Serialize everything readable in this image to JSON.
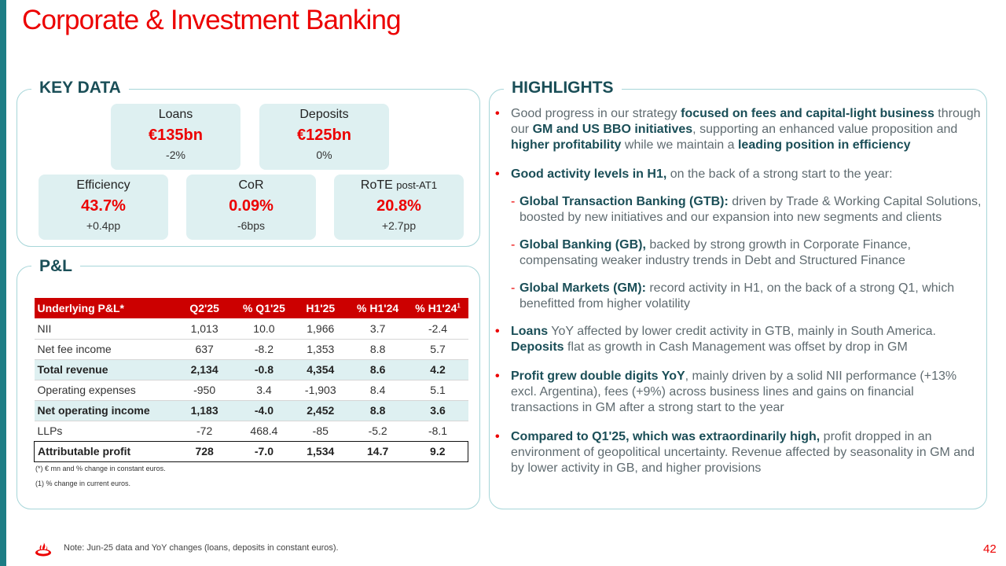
{
  "title": "Corporate & Investment Banking",
  "key_data": {
    "label": "KEY DATA",
    "loans": {
      "name": "Loans",
      "value": "€135bn",
      "change": "-2%"
    },
    "deposits": {
      "name": "Deposits",
      "value": "€125bn",
      "change": "0%"
    },
    "efficiency": {
      "name": "Efficiency",
      "value": "43.7%",
      "change": "+0.4pp"
    },
    "cor": {
      "name": "CoR",
      "value": "0.09%",
      "change": "-6bps"
    },
    "rote": {
      "name": "RoTE",
      "name_suffix": "post-AT1",
      "value": "20.8%",
      "change": "+2.7pp"
    }
  },
  "pl": {
    "label": "P&L",
    "headers": [
      "Underlying P&L*",
      "Q2'25",
      "% Q1'25",
      "H1'25",
      "% H1'24",
      "% H1'24"
    ],
    "header_sup": "1",
    "rows": [
      {
        "cells": [
          "NII",
          "1,013",
          "10.0",
          "1,966",
          "3.7",
          "-2.4"
        ],
        "style": ""
      },
      {
        "cells": [
          "Net fee income",
          "637",
          "-8.2",
          "1,353",
          "8.8",
          "5.7"
        ],
        "style": ""
      },
      {
        "cells": [
          "Total revenue",
          "2,134",
          "-0.8",
          "4,354",
          "8.6",
          "4.2"
        ],
        "style": "hl"
      },
      {
        "cells": [
          "Operating expenses",
          "-950",
          "3.4",
          "-1,903",
          "8.4",
          "5.1"
        ],
        "style": ""
      },
      {
        "cells": [
          "Net operating income",
          "1,183",
          "-4.0",
          "2,452",
          "8.8",
          "3.6"
        ],
        "style": "hl"
      },
      {
        "cells": [
          "LLPs",
          "-72",
          "468.4",
          "-85",
          "-5.2",
          "-8.1"
        ],
        "style": ""
      },
      {
        "cells": [
          "Attributable profit",
          "728",
          "-7.0",
          "1,534",
          "14.7",
          "9.2"
        ],
        "style": "final"
      }
    ],
    "footnote1": "(*) € mn and % change in constant euros.",
    "footnote2": "(1)  % change in current euros."
  },
  "highlights": {
    "label": "HIGHLIGHTS",
    "items": [
      {
        "type": "bullet",
        "parts": [
          {
            "t": "Good progress in our strategy ",
            "b": false
          },
          {
            "t": "focused on fees and capital-light business",
            "b": true
          },
          {
            "t": " through our ",
            "b": false
          },
          {
            "t": "GM and US BBO initiatives",
            "b": true
          },
          {
            "t": ", supporting an enhanced value proposition and ",
            "b": false
          },
          {
            "t": "higher profitability",
            "b": true
          },
          {
            "t": " while we maintain a ",
            "b": false
          },
          {
            "t": "leading position in efficiency",
            "b": true
          }
        ]
      },
      {
        "type": "bullet",
        "parts": [
          {
            "t": "Good activity levels in H1,",
            "b": true
          },
          {
            "t": " on the back of a strong start to the year:",
            "b": false
          }
        ]
      },
      {
        "type": "sub",
        "parts": [
          {
            "t": "Global Transaction Banking (GTB):",
            "b": true
          },
          {
            "t": " driven by Trade & Working Capital Solutions, boosted by new initiatives and our expansion into new segments and clients",
            "b": false
          }
        ]
      },
      {
        "type": "sub",
        "parts": [
          {
            "t": "Global Banking (GB),",
            "b": true
          },
          {
            "t": " backed by strong growth in Corporate Finance, compensating weaker industry trends in Debt and Structured Finance",
            "b": false
          }
        ]
      },
      {
        "type": "sub",
        "parts": [
          {
            "t": "Global Markets (GM):",
            "b": true
          },
          {
            "t": " record activity in H1, on the back of a strong Q1, which benefitted from higher volatility",
            "b": false
          }
        ]
      },
      {
        "type": "bullet",
        "parts": [
          {
            "t": "Loans",
            "b": true
          },
          {
            "t": " YoY affected by lower credit activity in GTB, mainly in South America. ",
            "b": false
          },
          {
            "t": "Deposits",
            "b": true
          },
          {
            "t": " flat as growth in Cash Management was offset by drop in GM",
            "b": false
          }
        ]
      },
      {
        "type": "bullet",
        "parts": [
          {
            "t": "Profit grew double digits YoY",
            "b": true
          },
          {
            "t": ", mainly driven by a solid NII performance (+13% excl. Argentina), fees (+9%) across business lines and gains on financial transactions in GM after a strong start to the year",
            "b": false
          }
        ]
      },
      {
        "type": "bullet",
        "parts": [
          {
            "t": "Compared to Q1'25, which was extraordinarily high,",
            "b": true
          },
          {
            "t": " profit dropped in an environment of geopolitical uncertainty. Revenue affected by seasonality in GM and by lower activity in GB, and higher provisions",
            "b": false
          }
        ]
      }
    ]
  },
  "footer": {
    "note": "Note: Jun-25 data and YoY changes (loans, deposits in constant euros).",
    "page": "42"
  },
  "colors": {
    "brand_red": "#ec0000",
    "teal": "#1a4e57",
    "panel_fill": "#def0f1",
    "table_header": "#cc0000"
  },
  "icons": {
    "logo": "flame-logo-icon"
  }
}
